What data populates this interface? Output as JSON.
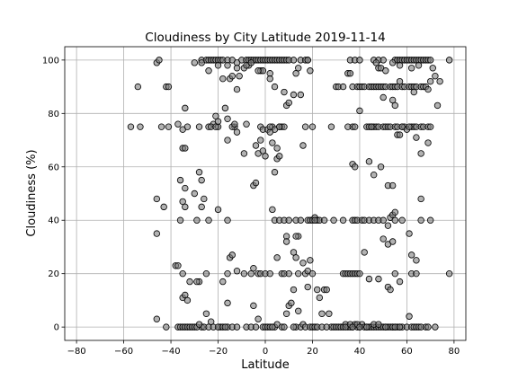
{
  "chart_data": {
    "type": "scatter",
    "title": "Cloudiness by City Latitude  2019-11-14",
    "xlabel": "Latitude",
    "ylabel": "Cloudiness (%)",
    "xlim": [
      -85,
      85
    ],
    "ylim": [
      -5,
      105
    ],
    "xticks": [
      -80,
      -60,
      -40,
      -20,
      0,
      20,
      40,
      60,
      80
    ],
    "yticks": [
      0,
      20,
      40,
      60,
      80,
      100
    ],
    "grid": true,
    "marker_color": "#7f7f7f",
    "marker_edge_color": "#000000",
    "points": [
      [
        -54,
        90
      ],
      [
        -46,
        99
      ],
      [
        -45,
        100
      ],
      [
        -42,
        90
      ],
      [
        -41,
        90
      ],
      [
        -30,
        99
      ],
      [
        -27,
        100
      ],
      [
        -25,
        100
      ],
      [
        -24,
        100
      ],
      [
        -23,
        100
      ],
      [
        -22,
        100
      ],
      [
        -21,
        100
      ],
      [
        -20,
        100
      ],
      [
        -19,
        100
      ],
      [
        -18,
        100
      ],
      [
        -16,
        100
      ],
      [
        -14,
        100
      ],
      [
        -10,
        100
      ],
      [
        -8,
        100
      ],
      [
        -7,
        100
      ],
      [
        -6,
        100
      ],
      [
        -5,
        100
      ],
      [
        -4,
        100
      ],
      [
        -3,
        100
      ],
      [
        -2,
        100
      ],
      [
        -1,
        100
      ],
      [
        0,
        100
      ],
      [
        1,
        100
      ],
      [
        2,
        100
      ],
      [
        3,
        100
      ],
      [
        4,
        100
      ],
      [
        5,
        100
      ],
      [
        6,
        100
      ],
      [
        7,
        100
      ],
      [
        8,
        100
      ],
      [
        9,
        100
      ],
      [
        10,
        100
      ],
      [
        12,
        100
      ],
      [
        15,
        100
      ],
      [
        17,
        100
      ],
      [
        18,
        100
      ],
      [
        36,
        100
      ],
      [
        38,
        100
      ],
      [
        40,
        100
      ],
      [
        46,
        100
      ],
      [
        48,
        100
      ],
      [
        50,
        100
      ],
      [
        55,
        100
      ],
      [
        56,
        100
      ],
      [
        57,
        100
      ],
      [
        58,
        100
      ],
      [
        59,
        100
      ],
      [
        60,
        100
      ],
      [
        61,
        100
      ],
      [
        62,
        100
      ],
      [
        63,
        100
      ],
      [
        64,
        100
      ],
      [
        65,
        100
      ],
      [
        66,
        100
      ],
      [
        67,
        100
      ],
      [
        68,
        100
      ],
      [
        69,
        100
      ],
      [
        70,
        100
      ],
      [
        78,
        100
      ],
      [
        -27,
        99
      ],
      [
        -12,
        99
      ],
      [
        -2,
        96
      ],
      [
        -1,
        96
      ],
      [
        -24,
        96
      ],
      [
        -20,
        98
      ],
      [
        -16,
        98
      ],
      [
        -12,
        97
      ],
      [
        -9,
        97
      ],
      [
        -7,
        98
      ],
      [
        14,
        97
      ],
      [
        13,
        95
      ],
      [
        19,
        96
      ],
      [
        35,
        95
      ],
      [
        36,
        95
      ],
      [
        47,
        99
      ],
      [
        48,
        97
      ],
      [
        49,
        97
      ],
      [
        51,
        96
      ],
      [
        54,
        99
      ],
      [
        57,
        98
      ],
      [
        62,
        97
      ],
      [
        65,
        98
      ],
      [
        71,
        97
      ],
      [
        -18,
        93
      ],
      [
        -15,
        93
      ],
      [
        -14,
        94
      ],
      [
        -11,
        94
      ],
      [
        -8,
        98
      ],
      [
        -6,
        99
      ],
      [
        2,
        95
      ],
      [
        15,
        87
      ],
      [
        12,
        87
      ],
      [
        9,
        83
      ],
      [
        10,
        84
      ],
      [
        30,
        90
      ],
      [
        31,
        90
      ],
      [
        33,
        90
      ],
      [
        37,
        90
      ],
      [
        39,
        90
      ],
      [
        40,
        90
      ],
      [
        41,
        90
      ],
      [
        42,
        90
      ],
      [
        44,
        90
      ],
      [
        45,
        90
      ],
      [
        46,
        90
      ],
      [
        47,
        90
      ],
      [
        48,
        90
      ],
      [
        49,
        90
      ],
      [
        50,
        90
      ],
      [
        51,
        90
      ],
      [
        53,
        90
      ],
      [
        54,
        90
      ],
      [
        55,
        90
      ],
      [
        56,
        90
      ],
      [
        58,
        90
      ],
      [
        59,
        90
      ],
      [
        61,
        90
      ],
      [
        62,
        90
      ],
      [
        63,
        90
      ],
      [
        64,
        90
      ],
      [
        66,
        90
      ],
      [
        67,
        90
      ],
      [
        68,
        90
      ],
      [
        69,
        89
      ],
      [
        70,
        92
      ],
      [
        72,
        94
      ],
      [
        74,
        92
      ],
      [
        50,
        86
      ],
      [
        54,
        85
      ],
      [
        55,
        83
      ],
      [
        57,
        92
      ],
      [
        63,
        88
      ],
      [
        -34,
        82
      ],
      [
        -17,
        82
      ],
      [
        -12,
        89
      ],
      [
        -3,
        96
      ],
      [
        2,
        93
      ],
      [
        4,
        90
      ],
      [
        8,
        88
      ],
      [
        -22,
        76
      ],
      [
        -21,
        79
      ],
      [
        -20,
        75
      ],
      [
        -20,
        77
      ],
      [
        -16,
        78
      ],
      [
        -13,
        75
      ],
      [
        -12,
        73
      ],
      [
        -8,
        76
      ],
      [
        -2,
        75
      ],
      [
        -1,
        74
      ],
      [
        1,
        74
      ],
      [
        3,
        75
      ],
      [
        4,
        74
      ],
      [
        6,
        75
      ],
      [
        7,
        75
      ],
      [
        8,
        75
      ],
      [
        17,
        75
      ],
      [
        18,
        100
      ],
      [
        20,
        75
      ],
      [
        28,
        75
      ],
      [
        37,
        75
      ],
      [
        38,
        75
      ],
      [
        43,
        75
      ],
      [
        44,
        75
      ],
      [
        45,
        75
      ],
      [
        46,
        75
      ],
      [
        47,
        75
      ],
      [
        48,
        75
      ],
      [
        50,
        75
      ],
      [
        51,
        75
      ],
      [
        52,
        75
      ],
      [
        53,
        75
      ],
      [
        55,
        75
      ],
      [
        56,
        75
      ],
      [
        58,
        75
      ],
      [
        59,
        75
      ],
      [
        60,
        74
      ],
      [
        62,
        75
      ],
      [
        63,
        75
      ],
      [
        64,
        75
      ],
      [
        66,
        75
      ],
      [
        67,
        75
      ],
      [
        69,
        75
      ],
      [
        70,
        75
      ],
      [
        73,
        83
      ],
      [
        -57,
        75
      ],
      [
        -53,
        75
      ],
      [
        -44,
        75
      ],
      [
        -41,
        75
      ],
      [
        -37,
        76
      ],
      [
        -35,
        74
      ],
      [
        -33,
        75
      ],
      [
        -28,
        75
      ],
      [
        -24,
        75
      ],
      [
        -23,
        75
      ],
      [
        -21,
        75
      ],
      [
        -14,
        75
      ],
      [
        -13,
        76
      ],
      [
        -3,
        65
      ],
      [
        -4,
        68
      ],
      [
        -2,
        70
      ],
      [
        -1,
        66
      ],
      [
        0,
        64
      ],
      [
        2,
        73
      ],
      [
        3,
        69
      ],
      [
        5,
        63
      ],
      [
        5,
        67
      ],
      [
        6,
        64
      ],
      [
        16,
        68
      ],
      [
        40,
        81
      ],
      [
        44,
        62
      ],
      [
        46,
        57
      ],
      [
        49,
        60
      ],
      [
        52,
        53
      ],
      [
        56,
        72
      ],
      [
        57,
        72
      ],
      [
        61,
        75
      ],
      [
        64,
        71
      ],
      [
        66,
        65
      ],
      [
        69,
        69
      ],
      [
        -35,
        67
      ],
      [
        -34,
        67
      ],
      [
        -28,
        58
      ],
      [
        -27,
        55
      ],
      [
        -16,
        70
      ],
      [
        -9,
        65
      ],
      [
        -5,
        53
      ],
      [
        -4,
        54
      ],
      [
        2,
        75
      ],
      [
        4,
        58
      ],
      [
        6,
        75
      ],
      [
        35,
        75
      ],
      [
        37,
        61
      ],
      [
        38,
        60
      ],
      [
        45,
        75
      ],
      [
        54,
        53
      ],
      [
        58,
        75
      ],
      [
        -46,
        48
      ],
      [
        -43,
        45
      ],
      [
        -36,
        55
      ],
      [
        -35,
        47
      ],
      [
        -34,
        45
      ],
      [
        -34,
        52
      ],
      [
        -30,
        50
      ],
      [
        -29,
        40
      ],
      [
        -27,
        45
      ],
      [
        -26,
        48
      ],
      [
        -24,
        40
      ],
      [
        -20,
        44
      ],
      [
        -16,
        40
      ],
      [
        3,
        44
      ],
      [
        4,
        40
      ],
      [
        6,
        40
      ],
      [
        8,
        40
      ],
      [
        10,
        40
      ],
      [
        13,
        40
      ],
      [
        14,
        34
      ],
      [
        15,
        40
      ],
      [
        18,
        40
      ],
      [
        19,
        40
      ],
      [
        20,
        40
      ],
      [
        21,
        41
      ],
      [
        22,
        40
      ],
      [
        23,
        40
      ],
      [
        25,
        40
      ],
      [
        29,
        40
      ],
      [
        33,
        40
      ],
      [
        37,
        40
      ],
      [
        38,
        40
      ],
      [
        39,
        40
      ],
      [
        41,
        40
      ],
      [
        42,
        40
      ],
      [
        44,
        40
      ],
      [
        46,
        40
      ],
      [
        48,
        40
      ],
      [
        50,
        40
      ],
      [
        52,
        38
      ],
      [
        53,
        41
      ],
      [
        54,
        42
      ],
      [
        55,
        43
      ],
      [
        55,
        40
      ],
      [
        58,
        40
      ],
      [
        61,
        35
      ],
      [
        66,
        48
      ],
      [
        66,
        40
      ],
      [
        70,
        40
      ],
      [
        -46,
        35
      ],
      [
        -36,
        40
      ],
      [
        9,
        34
      ],
      [
        9,
        32
      ],
      [
        13,
        34
      ],
      [
        19,
        25
      ],
      [
        42,
        28
      ],
      [
        50,
        33
      ],
      [
        52,
        31
      ],
      [
        54,
        32
      ],
      [
        62,
        27
      ],
      [
        64,
        25
      ],
      [
        -38,
        23
      ],
      [
        -35,
        20
      ],
      [
        -32,
        17
      ],
      [
        -28,
        17
      ],
      [
        -25,
        20
      ],
      [
        -18,
        17
      ],
      [
        -16,
        20
      ],
      [
        -15,
        26
      ],
      [
        -14,
        27
      ],
      [
        -12,
        21
      ],
      [
        -9,
        20
      ],
      [
        -6,
        20
      ],
      [
        -5,
        22
      ],
      [
        -3,
        20
      ],
      [
        -2,
        20
      ],
      [
        0,
        20
      ],
      [
        2,
        20
      ],
      [
        5,
        26
      ],
      [
        7,
        20
      ],
      [
        8,
        20
      ],
      [
        10,
        20
      ],
      [
        12,
        28
      ],
      [
        13,
        26
      ],
      [
        14,
        20
      ],
      [
        16,
        24
      ],
      [
        17,
        20
      ],
      [
        18,
        21
      ],
      [
        20,
        20
      ],
      [
        21,
        40
      ],
      [
        33,
        20
      ],
      [
        34,
        20
      ],
      [
        35,
        20
      ],
      [
        36,
        20
      ],
      [
        37,
        20
      ],
      [
        38,
        20
      ],
      [
        39,
        20
      ],
      [
        40,
        20
      ],
      [
        44,
        18
      ],
      [
        48,
        18
      ],
      [
        52,
        15
      ],
      [
        53,
        14
      ],
      [
        55,
        20
      ],
      [
        57,
        17
      ],
      [
        62,
        20
      ],
      [
        64,
        20
      ],
      [
        78,
        20
      ],
      [
        -46,
        3
      ],
      [
        -37,
        23
      ],
      [
        -35,
        11
      ],
      [
        -34,
        12
      ],
      [
        -33,
        10
      ],
      [
        -29,
        17
      ],
      [
        -27,
        0
      ],
      [
        -25,
        5
      ],
      [
        -23,
        2
      ],
      [
        -19,
        0
      ],
      [
        -16,
        9
      ],
      [
        -16,
        0
      ],
      [
        -14,
        0
      ],
      [
        -5,
        8
      ],
      [
        -3,
        3
      ],
      [
        -1,
        0
      ],
      [
        0,
        0
      ],
      [
        1,
        0
      ],
      [
        2,
        0
      ],
      [
        4,
        0
      ],
      [
        5,
        1
      ],
      [
        7,
        0
      ],
      [
        9,
        5
      ],
      [
        10,
        8
      ],
      [
        11,
        9
      ],
      [
        12,
        14
      ],
      [
        13,
        0
      ],
      [
        14,
        6
      ],
      [
        15,
        0
      ],
      [
        16,
        1
      ],
      [
        18,
        15
      ],
      [
        22,
        14
      ],
      [
        23,
        11
      ],
      [
        24,
        5
      ],
      [
        25,
        14
      ],
      [
        26,
        14
      ],
      [
        27,
        5
      ],
      [
        28,
        0
      ],
      [
        29,
        0
      ],
      [
        30,
        0
      ],
      [
        31,
        0
      ],
      [
        32,
        0
      ],
      [
        33,
        0
      ],
      [
        34,
        1
      ],
      [
        35,
        0
      ],
      [
        36,
        0
      ],
      [
        37,
        0
      ],
      [
        38,
        1
      ],
      [
        39,
        0
      ],
      [
        40,
        0
      ],
      [
        41,
        1
      ],
      [
        42,
        0
      ],
      [
        43,
        0
      ],
      [
        44,
        0
      ],
      [
        45,
        0
      ],
      [
        46,
        0
      ],
      [
        47,
        0
      ],
      [
        48,
        0
      ],
      [
        49,
        0
      ],
      [
        50,
        0
      ],
      [
        51,
        0
      ],
      [
        52,
        0
      ],
      [
        53,
        0
      ],
      [
        54,
        0
      ],
      [
        55,
        0
      ],
      [
        56,
        0
      ],
      [
        57,
        0
      ],
      [
        58,
        0
      ],
      [
        60,
        0
      ],
      [
        61,
        4
      ],
      [
        62,
        0
      ],
      [
        63,
        0
      ],
      [
        64,
        0
      ],
      [
        65,
        0
      ],
      [
        66,
        0
      ],
      [
        68,
        0
      ],
      [
        69,
        0
      ],
      [
        72,
        0
      ],
      [
        -42,
        0
      ],
      [
        -37,
        0
      ],
      [
        -36,
        0
      ],
      [
        -35,
        0
      ],
      [
        -34,
        0
      ],
      [
        -33,
        0
      ],
      [
        -32,
        0
      ],
      [
        -31,
        0
      ],
      [
        -30,
        0
      ],
      [
        -29,
        0
      ],
      [
        -28,
        1
      ],
      [
        -26,
        0
      ],
      [
        -24,
        0
      ],
      [
        -22,
        0
      ],
      [
        -20,
        0
      ],
      [
        -18,
        0
      ],
      [
        -17,
        0
      ],
      [
        -12,
        0
      ],
      [
        -8,
        0
      ],
      [
        -6,
        0
      ],
      [
        -4,
        0
      ],
      [
        3,
        0
      ],
      [
        8,
        0
      ],
      [
        12,
        0
      ],
      [
        17,
        0
      ],
      [
        19,
        0
      ],
      [
        20,
        0
      ],
      [
        21,
        0
      ],
      [
        22,
        0
      ],
      [
        24,
        0
      ],
      [
        26,
        0
      ],
      [
        34,
        0
      ],
      [
        36,
        1
      ],
      [
        37,
        0
      ],
      [
        39,
        1
      ],
      [
        40,
        0
      ],
      [
        43,
        0
      ],
      [
        46,
        1
      ],
      [
        48,
        1
      ],
      [
        51,
        0
      ],
      [
        54,
        0
      ],
      [
        55,
        0
      ],
      [
        57,
        0
      ]
    ]
  }
}
